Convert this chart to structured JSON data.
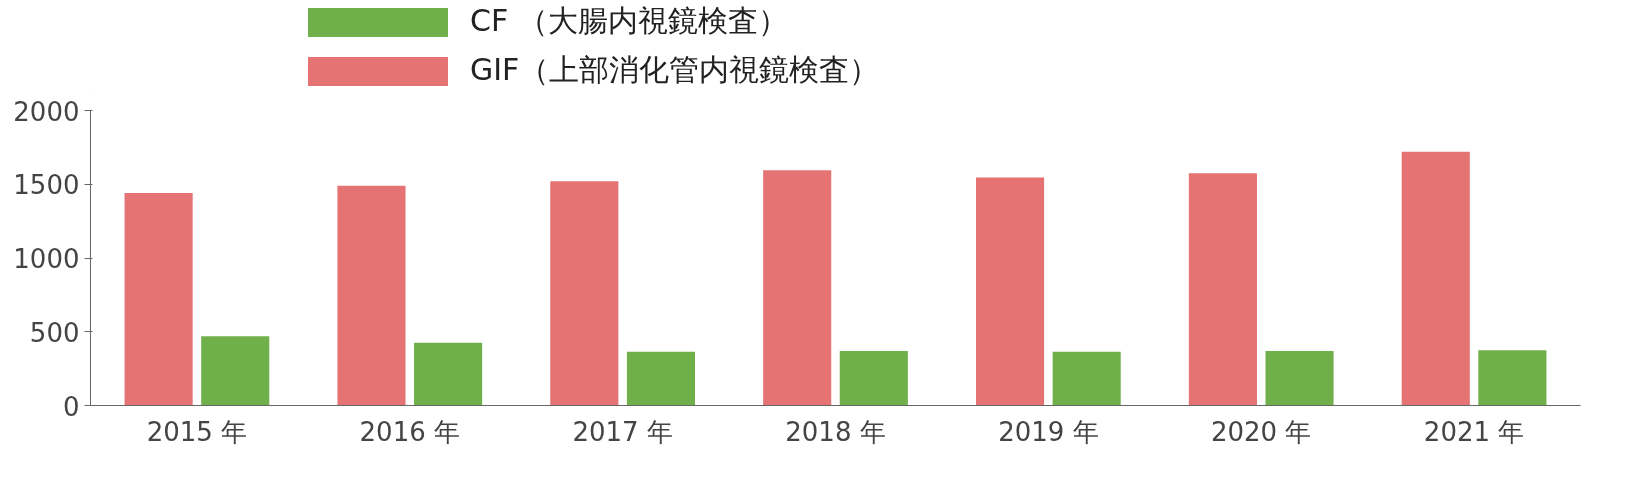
{
  "chart_data": {
    "type": "bar",
    "categories": [
      "2015 年",
      "2016 年",
      "2017 年",
      "2018 年",
      "2019 年",
      "2020 年",
      "2021 年"
    ],
    "series": [
      {
        "name": "CF （大腸内視鏡検査）",
        "color": "#70b04a",
        "values": [
          470,
          425,
          365,
          370,
          365,
          370,
          375
        ]
      },
      {
        "name": "GIF（上部消化管内視鏡検査）",
        "color": "#e57373",
        "values": [
          1440,
          1490,
          1520,
          1595,
          1545,
          1575,
          1720
        ]
      }
    ],
    "ylim": [
      0,
      2000
    ],
    "yticks": [
      0,
      500,
      1000,
      1500,
      2000
    ],
    "grid": false,
    "legend": "top"
  }
}
